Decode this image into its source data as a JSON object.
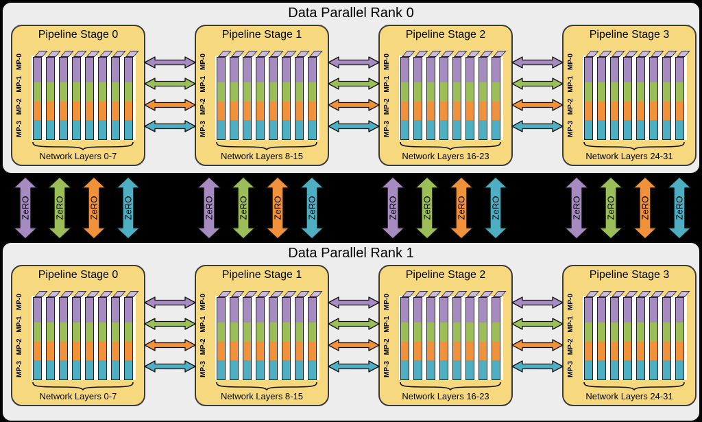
{
  "diagram": {
    "colors": {
      "purple": "#A68BC1",
      "green": "#9CBE59",
      "orange": "#F0913C",
      "teal": "#4FAFC2",
      "cap_purple": "#CDBBDF",
      "stage_bg": "#F6D97F",
      "rank_bg": "#EDEDED",
      "page_bg": "#000000"
    },
    "arrow_color_order": [
      "purple",
      "green",
      "orange",
      "teal"
    ],
    "mp_label": "MP-3 MP-2 MP-1 MP-0",
    "slabs_per_stage": 8,
    "ranks": [
      {
        "title": "Data Parallel Rank 0",
        "stages": [
          {
            "title": "Pipeline Stage 0",
            "layers": "Network Layers 0-7"
          },
          {
            "title": "Pipeline Stage 1",
            "layers": "Network Layers 8-15"
          },
          {
            "title": "Pipeline Stage 2",
            "layers": "Network Layers 16-23"
          },
          {
            "title": "Pipeline Stage 3",
            "layers": "Network Layers 24-31"
          }
        ]
      },
      {
        "title": "Data Parallel Rank 1",
        "stages": [
          {
            "title": "Pipeline Stage 0",
            "layers": "Network Layers 0-7"
          },
          {
            "title": "Pipeline Stage 1",
            "layers": "Network Layers 8-15"
          },
          {
            "title": "Pipeline Stage 2",
            "layers": "Network Layers 16-23"
          },
          {
            "title": "Pipeline Stage 3",
            "layers": "Network Layers 24-31"
          }
        ]
      }
    ],
    "zero": {
      "label": "ZeRO",
      "groups": 4,
      "arrows_per_group": 4
    }
  }
}
